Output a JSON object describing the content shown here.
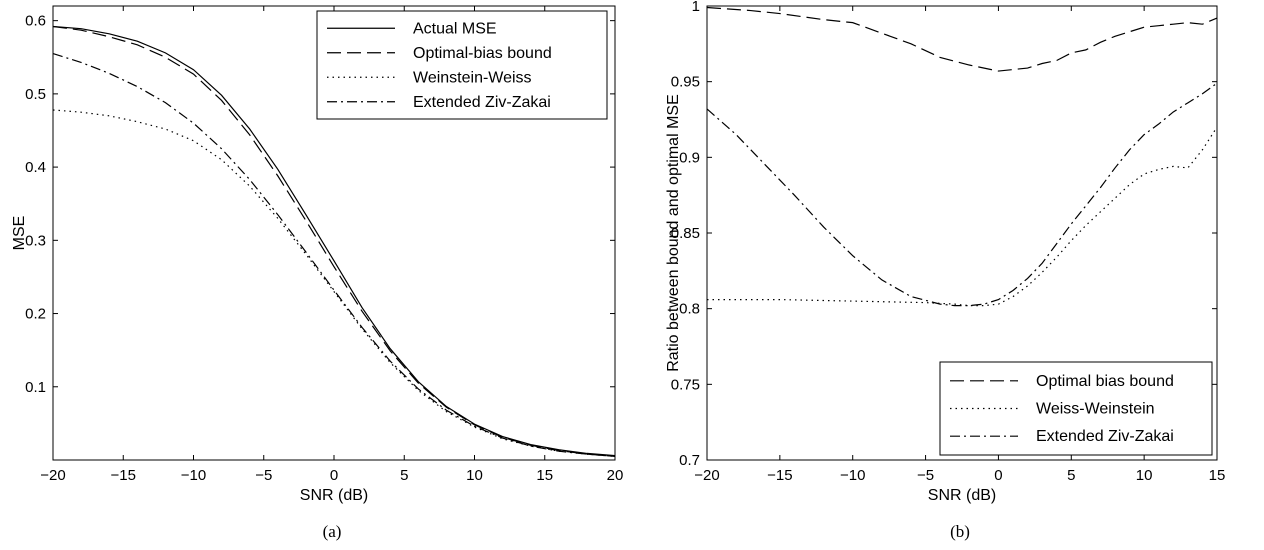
{
  "chart_data": [
    {
      "type": "line",
      "caption": "(a)",
      "xlabel": "SNR (dB)",
      "ylabel": "MSE",
      "xlim": [
        -20,
        20
      ],
      "ylim": [
        0,
        0.62
      ],
      "xticks": [
        -20,
        -15,
        -10,
        -5,
        0,
        5,
        10,
        15,
        20
      ],
      "yticks": [
        0.1,
        0.2,
        0.3,
        0.4,
        0.5,
        0.6
      ],
      "grid": false,
      "legend_position": "top-right",
      "series": [
        {
          "name": "Actual MSE",
          "style": "solid",
          "x": [
            -20,
            -18,
            -16,
            -14,
            -12,
            -10,
            -8,
            -6,
            -4,
            -2,
            0,
            2,
            4,
            6,
            8,
            10,
            12,
            14,
            16,
            18,
            20
          ],
          "y": [
            0.592,
            0.589,
            0.582,
            0.572,
            0.556,
            0.533,
            0.498,
            0.452,
            0.397,
            0.335,
            0.272,
            0.208,
            0.152,
            0.107,
            0.073,
            0.049,
            0.032,
            0.021,
            0.014,
            0.009,
            0.006
          ]
        },
        {
          "name": "Optimal-bias bound",
          "style": "dashed",
          "x": [
            -20,
            -18,
            -16,
            -14,
            -12,
            -10,
            -8,
            -6,
            -4,
            -2,
            0,
            2,
            4,
            6,
            8,
            10,
            12,
            14,
            16,
            18,
            20
          ],
          "y": [
            0.592,
            0.587,
            0.578,
            0.567,
            0.55,
            0.527,
            0.491,
            0.444,
            0.388,
            0.327,
            0.264,
            0.203,
            0.149,
            0.105,
            0.072,
            0.048,
            0.031,
            0.02,
            0.013,
            0.008,
            0.005
          ]
        },
        {
          "name": "Weinstein-Weiss",
          "style": "dotted",
          "x": [
            -20,
            -18,
            -16,
            -14,
            -12,
            -10,
            -8,
            -6,
            -4,
            -2,
            0,
            2,
            4,
            6,
            8,
            10,
            12,
            14,
            16,
            18,
            20
          ],
          "y": [
            0.478,
            0.475,
            0.47,
            0.462,
            0.452,
            0.436,
            0.41,
            0.374,
            0.33,
            0.281,
            0.23,
            0.179,
            0.133,
            0.095,
            0.066,
            0.045,
            0.029,
            0.019,
            0.012,
            0.008,
            0.005
          ]
        },
        {
          "name": "Extended Ziv-Zakai",
          "style": "dashdot",
          "x": [
            -20,
            -18,
            -16,
            -14,
            -12,
            -10,
            -8,
            -6,
            -4,
            -2,
            0,
            2,
            4,
            6,
            8,
            10,
            12,
            14,
            16,
            18,
            20
          ],
          "y": [
            0.555,
            0.543,
            0.528,
            0.51,
            0.488,
            0.46,
            0.425,
            0.383,
            0.335,
            0.284,
            0.232,
            0.181,
            0.135,
            0.097,
            0.068,
            0.046,
            0.03,
            0.019,
            0.012,
            0.008,
            0.005
          ]
        }
      ]
    },
    {
      "type": "line",
      "caption": "(b)",
      "xlabel": "SNR (dB)",
      "ylabel": "Ratio between bound and optimal MSE",
      "xlim": [
        -20,
        15
      ],
      "ylim": [
        0.7,
        1.0
      ],
      "xticks": [
        -20,
        -15,
        -10,
        -5,
        0,
        5,
        10,
        15
      ],
      "yticks": [
        0.7,
        0.75,
        0.8,
        0.85,
        0.9,
        0.95,
        1
      ],
      "grid": false,
      "legend_position": "bottom-right",
      "series": [
        {
          "name": "Optimal bias bound",
          "style": "dashed",
          "x": [
            -20,
            -17,
            -15,
            -12,
            -10,
            -8,
            -6,
            -4,
            -2,
            0,
            1,
            2,
            3,
            4,
            5,
            6,
            7,
            8,
            9,
            10,
            11,
            12,
            13,
            14,
            15
          ],
          "y": [
            0.999,
            0.997,
            0.995,
            0.991,
            0.989,
            0.982,
            0.975,
            0.966,
            0.961,
            0.957,
            0.958,
            0.959,
            0.962,
            0.964,
            0.969,
            0.971,
            0.976,
            0.98,
            0.983,
            0.986,
            0.987,
            0.988,
            0.989,
            0.988,
            0.992
          ]
        },
        {
          "name": "Weiss-Weinstein",
          "style": "dotted",
          "x": [
            -20,
            -15,
            -10,
            -5,
            -3,
            -2,
            -1,
            0,
            1,
            2,
            3,
            4,
            5,
            6,
            7,
            8,
            9,
            10,
            11,
            12,
            13,
            14,
            15
          ],
          "y": [
            0.806,
            0.806,
            0.805,
            0.804,
            0.803,
            0.802,
            0.802,
            0.803,
            0.808,
            0.815,
            0.824,
            0.834,
            0.845,
            0.855,
            0.864,
            0.873,
            0.882,
            0.889,
            0.892,
            0.894,
            0.893,
            0.905,
            0.92
          ]
        },
        {
          "name": "Extended Ziv-Zakai",
          "style": "dashdot",
          "x": [
            -20,
            -18,
            -16,
            -14,
            -12,
            -10,
            -8,
            -6,
            -4,
            -3,
            -2,
            -1,
            0,
            1,
            2,
            3,
            4,
            5,
            6,
            7,
            8,
            9,
            10,
            11,
            12,
            13,
            14,
            15
          ],
          "y": [
            0.932,
            0.915,
            0.895,
            0.875,
            0.854,
            0.835,
            0.819,
            0.808,
            0.803,
            0.802,
            0.802,
            0.803,
            0.806,
            0.812,
            0.82,
            0.83,
            0.843,
            0.856,
            0.868,
            0.88,
            0.893,
            0.905,
            0.915,
            0.922,
            0.93,
            0.936,
            0.942,
            0.949
          ]
        }
      ]
    }
  ]
}
